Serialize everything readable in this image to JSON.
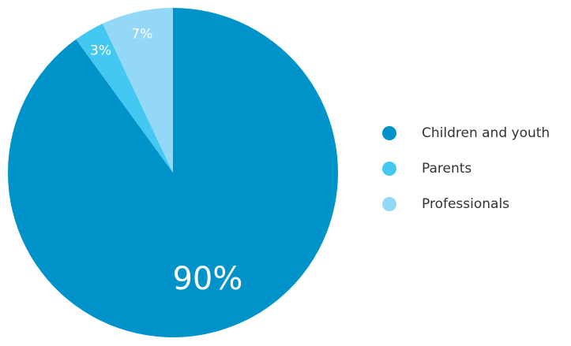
{
  "chart_data": {
    "type": "pie",
    "title": "",
    "categories": [
      "Children and youth",
      "Parents",
      "Professionals"
    ],
    "values": [
      90,
      3,
      7
    ],
    "value_labels": [
      "90%",
      "3%",
      "7%"
    ],
    "colors": [
      "#0093c9",
      "#44c8f2",
      "#93d9f7"
    ],
    "legend_position": "right",
    "start_angle": "top",
    "direction": "clockwise"
  }
}
